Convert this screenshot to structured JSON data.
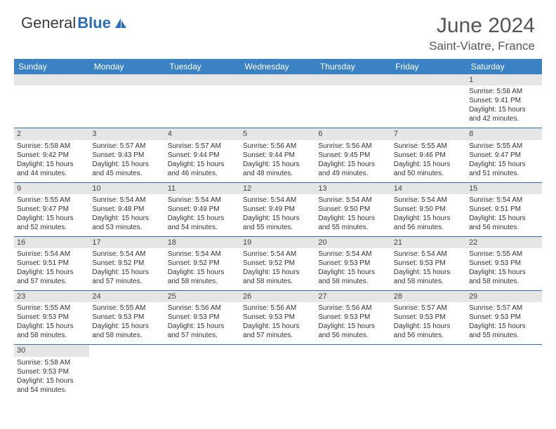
{
  "logo": {
    "text_dark": "General",
    "text_blue": "Blue"
  },
  "header": {
    "month_title": "June 2024",
    "location": "Saint-Viatre, France"
  },
  "colors": {
    "header_bg": "#3b82c4",
    "header_text": "#ffffff",
    "cell_border": "#2a6db8",
    "daynum_bg": "#e6e6e6",
    "text": "#333333",
    "logo_blue": "#2a6db8"
  },
  "weekdays": [
    "Sunday",
    "Monday",
    "Tuesday",
    "Wednesday",
    "Thursday",
    "Friday",
    "Saturday"
  ],
  "first_weekday_index": 6,
  "days": [
    {
      "n": 1,
      "sunrise": "5:58 AM",
      "sunset": "9:41 PM",
      "daylight": "15 hours and 42 minutes."
    },
    {
      "n": 2,
      "sunrise": "5:58 AM",
      "sunset": "9:42 PM",
      "daylight": "15 hours and 44 minutes."
    },
    {
      "n": 3,
      "sunrise": "5:57 AM",
      "sunset": "9:43 PM",
      "daylight": "15 hours and 45 minutes."
    },
    {
      "n": 4,
      "sunrise": "5:57 AM",
      "sunset": "9:44 PM",
      "daylight": "15 hours and 46 minutes."
    },
    {
      "n": 5,
      "sunrise": "5:56 AM",
      "sunset": "9:44 PM",
      "daylight": "15 hours and 48 minutes."
    },
    {
      "n": 6,
      "sunrise": "5:56 AM",
      "sunset": "9:45 PM",
      "daylight": "15 hours and 49 minutes."
    },
    {
      "n": 7,
      "sunrise": "5:55 AM",
      "sunset": "9:46 PM",
      "daylight": "15 hours and 50 minutes."
    },
    {
      "n": 8,
      "sunrise": "5:55 AM",
      "sunset": "9:47 PM",
      "daylight": "15 hours and 51 minutes."
    },
    {
      "n": 9,
      "sunrise": "5:55 AM",
      "sunset": "9:47 PM",
      "daylight": "15 hours and 52 minutes."
    },
    {
      "n": 10,
      "sunrise": "5:54 AM",
      "sunset": "9:48 PM",
      "daylight": "15 hours and 53 minutes."
    },
    {
      "n": 11,
      "sunrise": "5:54 AM",
      "sunset": "9:49 PM",
      "daylight": "15 hours and 54 minutes."
    },
    {
      "n": 12,
      "sunrise": "5:54 AM",
      "sunset": "9:49 PM",
      "daylight": "15 hours and 55 minutes."
    },
    {
      "n": 13,
      "sunrise": "5:54 AM",
      "sunset": "9:50 PM",
      "daylight": "15 hours and 55 minutes."
    },
    {
      "n": 14,
      "sunrise": "5:54 AM",
      "sunset": "9:50 PM",
      "daylight": "15 hours and 56 minutes."
    },
    {
      "n": 15,
      "sunrise": "5:54 AM",
      "sunset": "9:51 PM",
      "daylight": "15 hours and 56 minutes."
    },
    {
      "n": 16,
      "sunrise": "5:54 AM",
      "sunset": "9:51 PM",
      "daylight": "15 hours and 57 minutes."
    },
    {
      "n": 17,
      "sunrise": "5:54 AM",
      "sunset": "9:52 PM",
      "daylight": "15 hours and 57 minutes."
    },
    {
      "n": 18,
      "sunrise": "5:54 AM",
      "sunset": "9:52 PM",
      "daylight": "15 hours and 58 minutes."
    },
    {
      "n": 19,
      "sunrise": "5:54 AM",
      "sunset": "9:52 PM",
      "daylight": "15 hours and 58 minutes."
    },
    {
      "n": 20,
      "sunrise": "5:54 AM",
      "sunset": "9:53 PM",
      "daylight": "15 hours and 58 minutes."
    },
    {
      "n": 21,
      "sunrise": "5:54 AM",
      "sunset": "9:53 PM",
      "daylight": "15 hours and 58 minutes."
    },
    {
      "n": 22,
      "sunrise": "5:55 AM",
      "sunset": "9:53 PM",
      "daylight": "15 hours and 58 minutes."
    },
    {
      "n": 23,
      "sunrise": "5:55 AM",
      "sunset": "9:53 PM",
      "daylight": "15 hours and 58 minutes."
    },
    {
      "n": 24,
      "sunrise": "5:55 AM",
      "sunset": "9:53 PM",
      "daylight": "15 hours and 58 minutes."
    },
    {
      "n": 25,
      "sunrise": "5:56 AM",
      "sunset": "9:53 PM",
      "daylight": "15 hours and 57 minutes."
    },
    {
      "n": 26,
      "sunrise": "5:56 AM",
      "sunset": "9:53 PM",
      "daylight": "15 hours and 57 minutes."
    },
    {
      "n": 27,
      "sunrise": "5:56 AM",
      "sunset": "9:53 PM",
      "daylight": "15 hours and 56 minutes."
    },
    {
      "n": 28,
      "sunrise": "5:57 AM",
      "sunset": "9:53 PM",
      "daylight": "15 hours and 56 minutes."
    },
    {
      "n": 29,
      "sunrise": "5:57 AM",
      "sunset": "9:53 PM",
      "daylight": "15 hours and 55 minutes."
    },
    {
      "n": 30,
      "sunrise": "5:58 AM",
      "sunset": "9:53 PM",
      "daylight": "15 hours and 54 minutes."
    }
  ],
  "labels": {
    "sunrise": "Sunrise:",
    "sunset": "Sunset:",
    "daylight": "Daylight:"
  }
}
